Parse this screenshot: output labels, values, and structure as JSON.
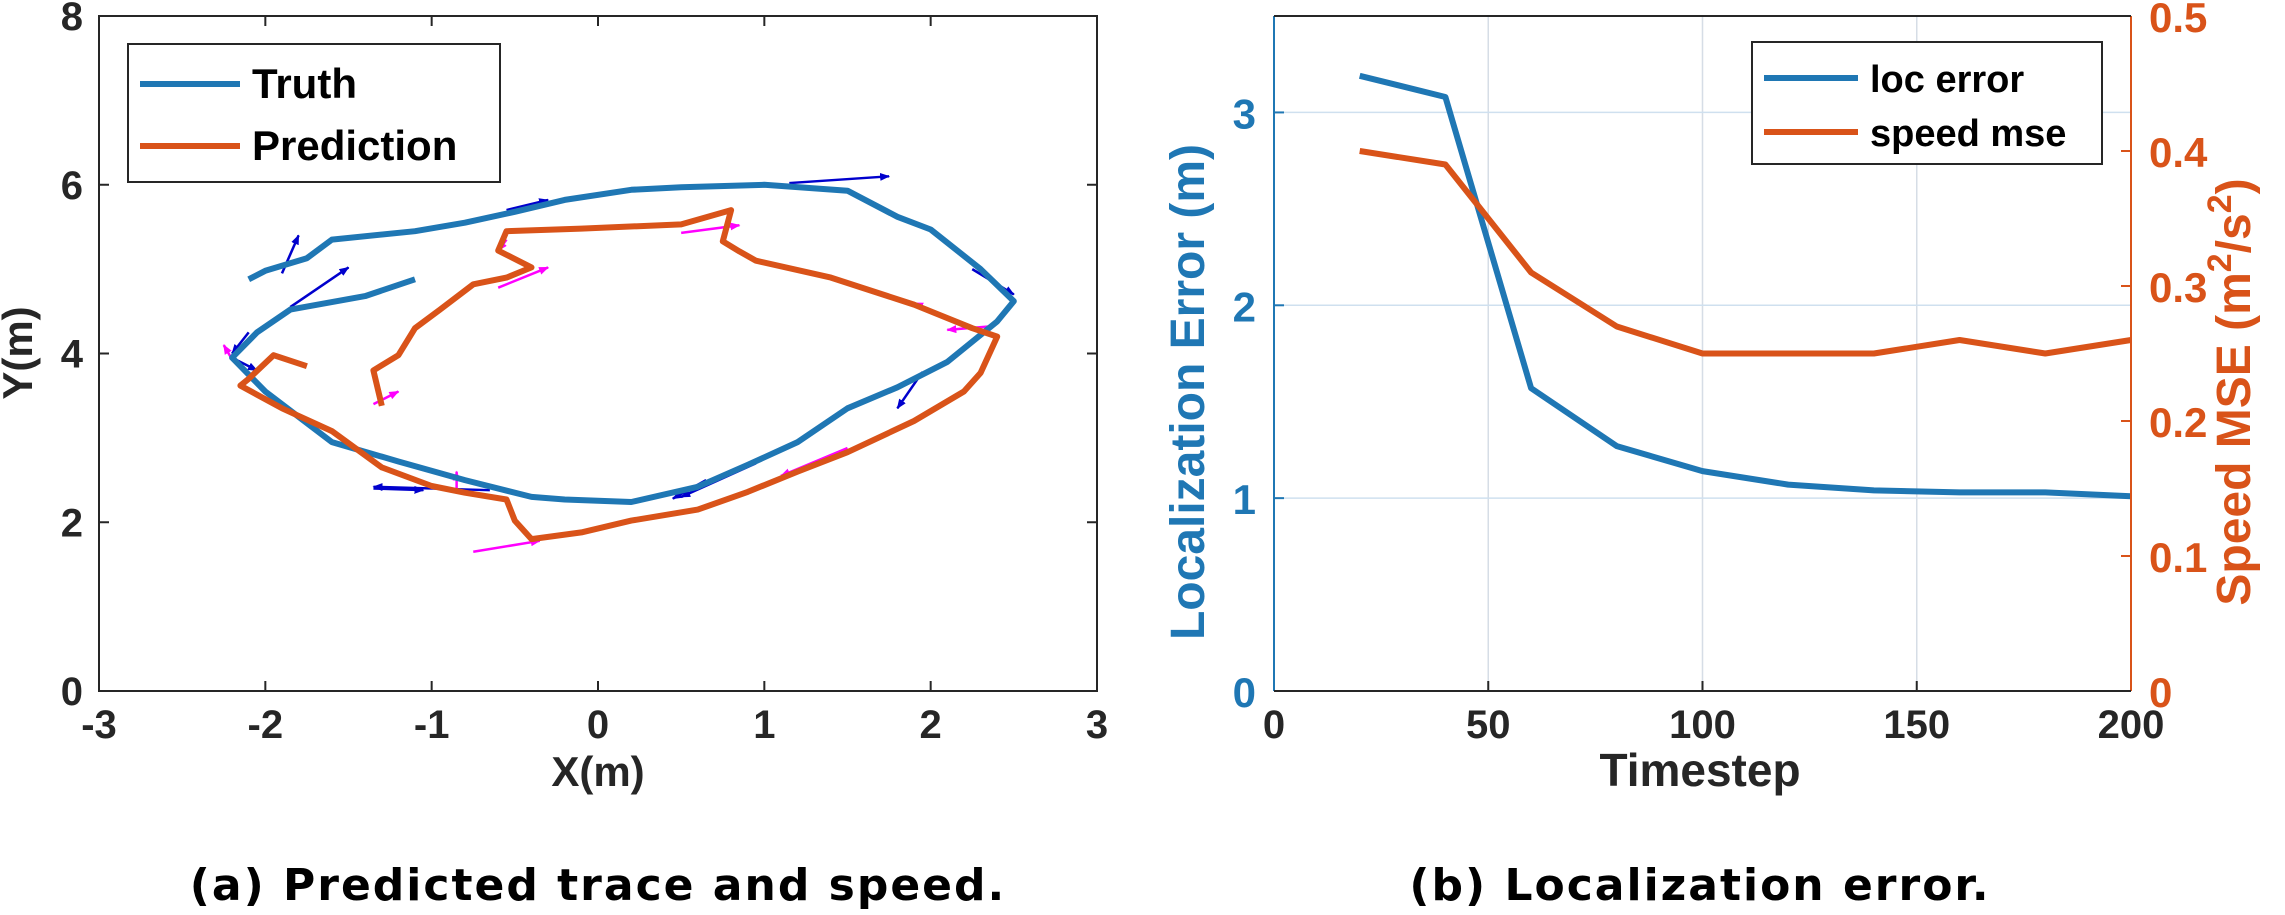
{
  "chart_data": [
    {
      "type": "line",
      "caption": "(a) Predicted trace and speed.",
      "xlabel": "X(m)",
      "ylabel": "Y(m)",
      "xlim": [
        -3,
        3
      ],
      "ylim": [
        0,
        8
      ],
      "xticks": [
        -3,
        -2,
        -1,
        0,
        1,
        2,
        3
      ],
      "yticks": [
        0,
        2,
        4,
        6,
        8
      ],
      "grid": false,
      "legend_position": "top-left",
      "series": [
        {
          "name": "Truth",
          "color": "#1f77b4",
          "points": [
            [
              -1.1,
              4.88
            ],
            [
              -1.4,
              4.68
            ],
            [
              -1.85,
              4.52
            ],
            [
              -2.05,
              4.25
            ],
            [
              -2.2,
              3.95
            ],
            [
              -2.0,
              3.55
            ],
            [
              -1.6,
              2.95
            ],
            [
              -1.2,
              2.72
            ],
            [
              -0.8,
              2.5
            ],
            [
              -0.4,
              2.3
            ],
            [
              -0.2,
              2.27
            ],
            [
              0.2,
              2.24
            ],
            [
              0.6,
              2.42
            ],
            [
              0.9,
              2.68
            ],
            [
              1.2,
              2.95
            ],
            [
              1.5,
              3.35
            ],
            [
              1.8,
              3.6
            ],
            [
              2.1,
              3.9
            ],
            [
              2.4,
              4.38
            ],
            [
              2.5,
              4.62
            ],
            [
              2.3,
              5.0
            ],
            [
              2.0,
              5.47
            ],
            [
              1.8,
              5.62
            ],
            [
              1.5,
              5.93
            ],
            [
              1.0,
              6.0
            ],
            [
              0.5,
              5.97
            ],
            [
              0.2,
              5.94
            ],
            [
              -0.2,
              5.82
            ],
            [
              -0.5,
              5.68
            ],
            [
              -0.8,
              5.55
            ],
            [
              -1.1,
              5.45
            ],
            [
              -1.6,
              5.35
            ],
            [
              -1.75,
              5.13
            ],
            [
              -2.0,
              4.98
            ],
            [
              -2.1,
              4.88
            ]
          ]
        },
        {
          "name": "Prediction",
          "color": "#d95319",
          "points": [
            [
              -1.75,
              3.85
            ],
            [
              -1.95,
              3.98
            ],
            [
              -2.1,
              3.7
            ],
            [
              -2.15,
              3.62
            ],
            [
              -1.9,
              3.35
            ],
            [
              -1.6,
              3.08
            ],
            [
              -1.3,
              2.65
            ],
            [
              -1.0,
              2.43
            ],
            [
              -0.8,
              2.35
            ],
            [
              -0.55,
              2.27
            ],
            [
              -0.5,
              2.02
            ],
            [
              -0.4,
              1.8
            ],
            [
              -0.1,
              1.88
            ],
            [
              0.2,
              2.02
            ],
            [
              0.6,
              2.15
            ],
            [
              0.9,
              2.36
            ],
            [
              1.2,
              2.6
            ],
            [
              1.5,
              2.83
            ],
            [
              1.9,
              3.2
            ],
            [
              2.2,
              3.55
            ],
            [
              2.3,
              3.77
            ],
            [
              2.4,
              4.2
            ],
            [
              2.25,
              4.3
            ],
            [
              1.9,
              4.58
            ],
            [
              1.4,
              4.9
            ],
            [
              0.95,
              5.1
            ],
            [
              0.85,
              5.21
            ],
            [
              0.75,
              5.33
            ],
            [
              0.8,
              5.7
            ],
            [
              0.5,
              5.53
            ],
            [
              -0.1,
              5.48
            ],
            [
              -0.55,
              5.45
            ],
            [
              -0.6,
              5.22
            ],
            [
              -0.4,
              5.02
            ],
            [
              -0.55,
              4.9
            ],
            [
              -0.75,
              4.82
            ],
            [
              -0.95,
              4.52
            ],
            [
              -1.1,
              4.3
            ],
            [
              -1.2,
              3.98
            ],
            [
              -1.35,
              3.8
            ],
            [
              -1.3,
              3.38
            ]
          ]
        }
      ],
      "arrows": [
        {
          "color": "#0000cd",
          "segments": [
            [
              -1.9,
              4.95,
              -1.8,
              5.4
            ],
            [
              -1.85,
              4.55,
              -1.5,
              5.02
            ],
            [
              -2.1,
              4.25,
              -2.2,
              4.0
            ],
            [
              -2.2,
              3.95,
              -2.05,
              3.8
            ],
            [
              -1.35,
              2.4,
              -1.05,
              2.38
            ],
            [
              -0.65,
              2.38,
              -1.35,
              2.42
            ],
            [
              0.65,
              2.5,
              0.45,
              2.28
            ],
            [
              0.95,
              2.7,
              0.5,
              2.3
            ],
            [
              1.95,
              3.78,
              1.8,
              3.35
            ],
            [
              2.25,
              5.0,
              2.5,
              4.7
            ],
            [
              1.15,
              6.02,
              1.75,
              6.1
            ],
            [
              -0.55,
              5.7,
              -0.3,
              5.82
            ]
          ]
        },
        {
          "color": "#ff00ff",
          "segments": [
            [
              -2.2,
              3.93,
              -2.25,
              4.1
            ],
            [
              -1.35,
              3.4,
              -1.2,
              3.55
            ],
            [
              -0.85,
              2.4,
              -0.85,
              2.6
            ],
            [
              -0.75,
              1.65,
              -0.35,
              1.78
            ],
            [
              -0.6,
              4.78,
              -0.3,
              5.02
            ],
            [
              -0.55,
              5.35,
              -0.6,
              5.22
            ],
            [
              0.5,
              5.43,
              0.85,
              5.52
            ],
            [
              1.5,
              2.88,
              1.1,
              2.55
            ],
            [
              2.2,
              4.35,
              1.9,
              4.6
            ],
            [
              2.35,
              4.32,
              2.1,
              4.28
            ]
          ]
        }
      ]
    },
    {
      "type": "line",
      "caption": "(b) Localization error.",
      "xlabel": "Timestep",
      "ylabel": "Localization Error (m)",
      "y2label_main": "Speed MSE (m",
      "y2label_sup1": "2",
      "y2label_mid": "/s",
      "y2label_sup2": "2",
      "y2label_end": ")",
      "xlim": [
        0,
        200
      ],
      "ylim": [
        0,
        3.5
      ],
      "y2lim": [
        0,
        0.5
      ],
      "xticks": [
        0,
        50,
        100,
        150,
        200
      ],
      "yticks": [
        0,
        1,
        2,
        3
      ],
      "y2ticks": [
        "0",
        "0.1",
        "0.2",
        "0.3",
        "0.4",
        "0.5"
      ],
      "grid": true,
      "legend_position": "top-right",
      "x": [
        20,
        40,
        60,
        80,
        100,
        120,
        140,
        160,
        180,
        200
      ],
      "series": [
        {
          "name": "loc error",
          "color": "#1f77b4",
          "axis": "left",
          "values": [
            3.19,
            3.08,
            1.57,
            1.27,
            1.14,
            1.07,
            1.04,
            1.03,
            1.03,
            1.01
          ]
        },
        {
          "name": "speed mse",
          "color": "#d95319",
          "axis": "right",
          "values": [
            0.4,
            0.39,
            0.31,
            0.27,
            0.25,
            0.25,
            0.25,
            0.26,
            0.25,
            0.26
          ]
        }
      ]
    }
  ]
}
